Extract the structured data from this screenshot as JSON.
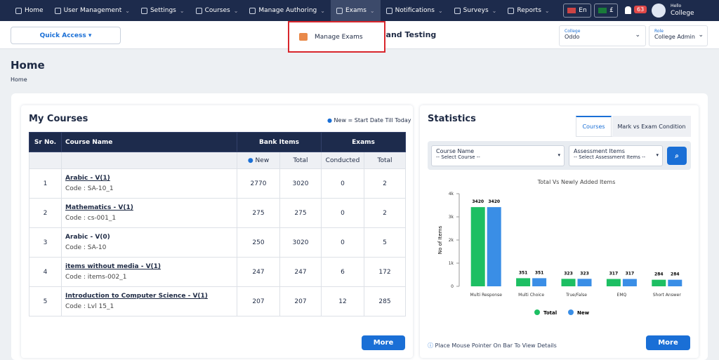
{
  "nav": {
    "items": [
      "Home",
      "User Management",
      "Settings",
      "Courses",
      "Manage Authoring",
      "Exams",
      "Notifications",
      "Surveys",
      "Reports"
    ],
    "active": 5,
    "language": "En",
    "currency": "£",
    "notifications": 63,
    "hello": "Hello",
    "user": "College"
  },
  "dropdown": {
    "item": "Manage Exams"
  },
  "subbar": {
    "quick_access": "Quick Access",
    "heading": "ng and Testing",
    "college_label": "College",
    "college_value": "Oddo",
    "role_label": "Role",
    "role_value": "College Admin"
  },
  "page": {
    "title": "Home",
    "breadcrumb": "Home"
  },
  "courses": {
    "title": "My Courses",
    "legend": "New = Start Date Till Today",
    "headers": {
      "sr": "Sr No.",
      "name": "Course Name",
      "bank": "Bank Items",
      "exams": "Exams",
      "new": "New",
      "total": "Total",
      "conducted": "Conducted",
      "exams_total": "Total"
    },
    "rows": [
      {
        "sr": 1,
        "name": "Arabic - V(1)",
        "linked": true,
        "code": "Code : SA-10_1",
        "new": 2770,
        "total": 3020,
        "conducted": 0,
        "exams_total": 2
      },
      {
        "sr": 2,
        "name": "Mathematics - V(1)",
        "linked": true,
        "code": "Code : cs-001_1",
        "new": 275,
        "total": 275,
        "conducted": 0,
        "exams_total": 2
      },
      {
        "sr": 3,
        "name": "Arabic - V(0)",
        "linked": false,
        "code": "Code : SA-10",
        "new": 250,
        "total": 3020,
        "conducted": 0,
        "exams_total": 5
      },
      {
        "sr": 4,
        "name": "items without media - V(1)",
        "linked": true,
        "code": "Code : items-002_1",
        "new": 247,
        "total": 247,
        "conducted": 6,
        "exams_total": 172
      },
      {
        "sr": 5,
        "name": "Introduction to Computer Science - V(1)",
        "linked": true,
        "code": "Code : Lvl 15_1",
        "new": 207,
        "total": 207,
        "conducted": 12,
        "exams_total": 285
      }
    ],
    "more": "More"
  },
  "statistics": {
    "title": "Statistics",
    "tabs": [
      "Courses",
      "Mark vs Exam Condition"
    ],
    "filters": [
      {
        "label": "Course Name",
        "placeholder": "-- Select Course --"
      },
      {
        "label": "Assessment Items",
        "placeholder": "-- Select Assessment Items --"
      }
    ],
    "chart": {
      "type": "bar",
      "title": "Total Vs Newly Added Items",
      "ylabel": "No of Items",
      "categories": [
        "Multi Response",
        "Multi Choice",
        "True/False",
        "EMQ",
        "Short Answer"
      ],
      "series": [
        {
          "name": "Total",
          "color": "#1dbf63",
          "values": [
            3420,
            351,
            323,
            317,
            284
          ]
        },
        {
          "name": "New",
          "color": "#3a8ee6",
          "values": [
            3420,
            351,
            323,
            317,
            284
          ]
        }
      ],
      "ylim": [
        0,
        4000
      ],
      "yticks": [
        0,
        {
          "value": 1000,
          "label": "1k"
        },
        {
          "value": 2000,
          "label": "2k"
        },
        {
          "value": 3000,
          "label": "3k"
        },
        {
          "value": 4000,
          "label": "4k"
        }
      ]
    },
    "hint": "Place Mouse Pointer On Bar To View Details",
    "more": "More"
  }
}
